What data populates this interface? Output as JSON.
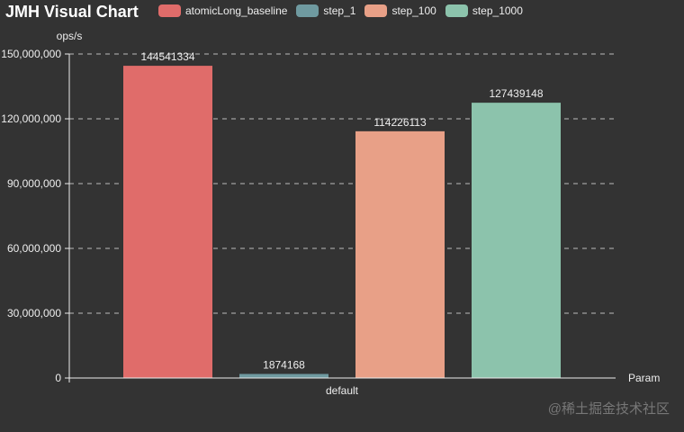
{
  "title": "JMH Visual Chart",
  "watermark": "@稀土掘金技术社区",
  "legend": [
    {
      "name": "atomicLong_baseline",
      "color": "#e06c6a"
    },
    {
      "name": "step_1",
      "color": "#6f9aa0"
    },
    {
      "name": "step_100",
      "color": "#e8a087"
    },
    {
      "name": "step_1000",
      "color": "#8cc3ac"
    }
  ],
  "chart_data": {
    "type": "bar",
    "title": "JMH Visual Chart",
    "xlabel": "Param",
    "ylabel": "ops/s",
    "categories": [
      "default"
    ],
    "series": [
      {
        "name": "atomicLong_baseline",
        "values": [
          144541334
        ]
      },
      {
        "name": "step_1",
        "values": [
          1874168
        ]
      },
      {
        "name": "step_100",
        "values": [
          114226113
        ]
      },
      {
        "name": "step_1000",
        "values": [
          127439148
        ]
      }
    ],
    "yticks": [
      "0",
      "30,000,000",
      "60,000,000",
      "90,000,000",
      "120,000,000",
      "150,000,000"
    ],
    "ylim": [
      0,
      150000000
    ],
    "grid": true,
    "legend_position": "top"
  }
}
